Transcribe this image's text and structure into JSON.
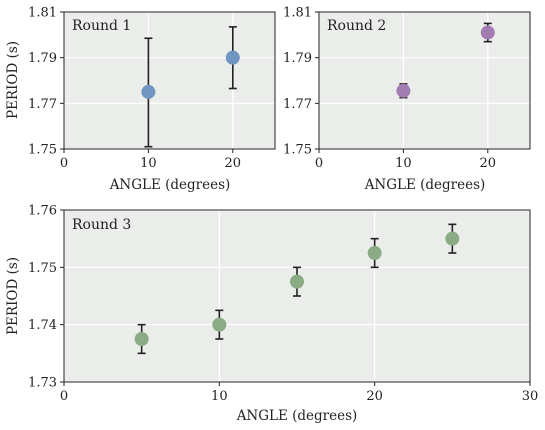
{
  "chart_data": [
    {
      "type": "scatter",
      "title": "Round 1",
      "xlabel": "ANGLE (degrees)",
      "ylabel": "PERIOD (s)",
      "xlim": [
        0,
        25
      ],
      "ylim": [
        1.75,
        1.81
      ],
      "xticks": [
        "0",
        "10",
        "20"
      ],
      "xtick_values": [
        0,
        10,
        20
      ],
      "yticks": [
        "1.75",
        "1.77",
        "1.79",
        "1.81"
      ],
      "ytick_values": [
        1.75,
        1.77,
        1.79,
        1.81
      ],
      "grid": true,
      "color": "#6f95c0",
      "points": [
        {
          "x": 10,
          "y": 1.775,
          "err_low": 1.751,
          "err_high": 1.7985
        },
        {
          "x": 20,
          "y": 1.79,
          "err_low": 1.7765,
          "err_high": 1.8035
        }
      ]
    },
    {
      "type": "scatter",
      "title": "Round 2",
      "xlabel": "ANGLE (degrees)",
      "ylabel": "",
      "xlim": [
        0,
        25
      ],
      "ylim": [
        1.75,
        1.81
      ],
      "xticks": [
        "0",
        "10",
        "20"
      ],
      "xtick_values": [
        0,
        10,
        20
      ],
      "yticks": [
        "1.75",
        "1.77",
        "1.79",
        "1.81"
      ],
      "ytick_values": [
        1.75,
        1.77,
        1.79,
        1.81
      ],
      "grid": true,
      "color": "#a27cb2",
      "points": [
        {
          "x": 10,
          "y": 1.7755,
          "err_low": 1.7725,
          "err_high": 1.7785
        },
        {
          "x": 20,
          "y": 1.801,
          "err_low": 1.797,
          "err_high": 1.805
        }
      ]
    },
    {
      "type": "scatter",
      "title": "Round 3",
      "xlabel": "ANGLE (degrees)",
      "ylabel": "PERIOD (s)",
      "xlim": [
        0,
        30
      ],
      "ylim": [
        1.73,
        1.76
      ],
      "xticks": [
        "0",
        "10",
        "20",
        "30"
      ],
      "xtick_values": [
        0,
        10,
        20,
        30
      ],
      "yticks": [
        "1.73",
        "1.74",
        "1.75",
        "1.76"
      ],
      "ytick_values": [
        1.73,
        1.74,
        1.75,
        1.76
      ],
      "grid": true,
      "color": "#8aab84",
      "points": [
        {
          "x": 5,
          "y": 1.7375,
          "err_low": 1.735,
          "err_high": 1.74
        },
        {
          "x": 10,
          "y": 1.74,
          "err_low": 1.7375,
          "err_high": 1.7425
        },
        {
          "x": 15,
          "y": 1.7475,
          "err_low": 1.745,
          "err_high": 1.75
        },
        {
          "x": 20,
          "y": 1.7525,
          "err_low": 1.75,
          "err_high": 1.755
        },
        {
          "x": 25,
          "y": 1.755,
          "err_low": 1.7525,
          "err_high": 1.7575
        }
      ]
    }
  ]
}
